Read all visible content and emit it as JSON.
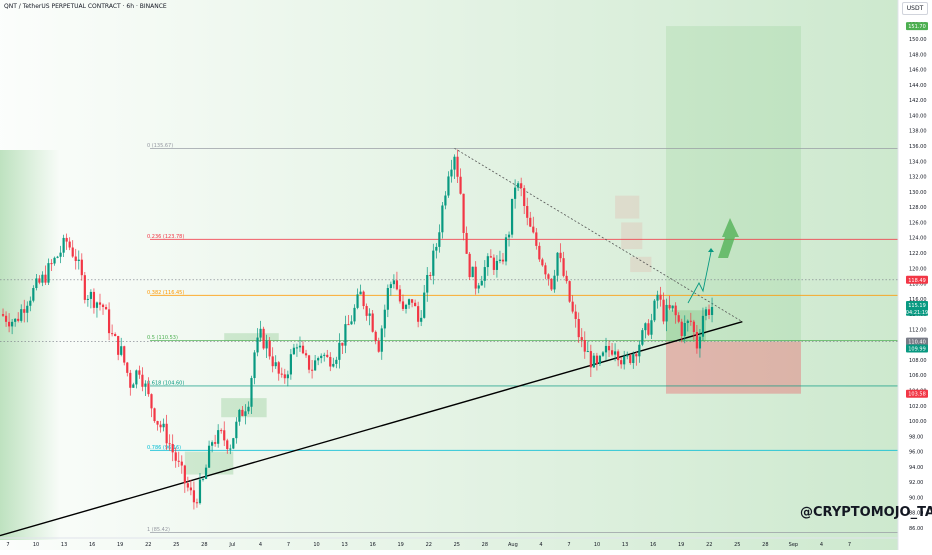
{
  "header": {
    "symbol_title": "QNT / TetherUS PERPETUAL CONTRACT · 6h · BINANCE",
    "currency_button": "USDT"
  },
  "watermark": "@CRYPTOMOJO_TA",
  "colors": {
    "up": "#089981",
    "down": "#f23645",
    "trendline": "#000000",
    "fib_0": "#9598a1",
    "fib_0236": "#f23645",
    "fib_0382": "#ff9800",
    "fib_05": "#4caf50",
    "fib_0618": "#089981",
    "fib_0786": "#00bcd4",
    "target_zone": "#4caf50",
    "stop_zone": "#f23645",
    "green_bg": "#4caf50"
  },
  "chart_data": {
    "type": "candlestick",
    "instrument": "QNT / TetherUS PERPETUAL CONTRACT",
    "timeframe": "6h",
    "exchange": "BINANCE",
    "ylim": [
      85,
      156
    ],
    "y_ticks": [
      86,
      88,
      90,
      92,
      94,
      96,
      98,
      100,
      102,
      104,
      106,
      108,
      110,
      112,
      114,
      116,
      118,
      120,
      122,
      124,
      126,
      128,
      130,
      132,
      134,
      136,
      138,
      140,
      142,
      144,
      146,
      148,
      150,
      152,
      154
    ],
    "x_ticks": [
      "7",
      "10",
      "13",
      "16",
      "19",
      "22",
      "25",
      "28",
      "Jul",
      "4",
      "7",
      "10",
      "13",
      "16",
      "19",
      "22",
      "25",
      "28",
      "Aug",
      "4",
      "7",
      "10",
      "13",
      "16",
      "19",
      "22",
      "25",
      "28",
      "Sep",
      "4",
      "7"
    ],
    "price_path": [
      [
        0,
        114
      ],
      [
        5,
        113
      ],
      [
        9,
        116
      ],
      [
        14,
        118.5
      ],
      [
        18,
        121
      ],
      [
        22,
        123.5
      ],
      [
        25,
        121.5
      ],
      [
        28,
        117
      ],
      [
        31,
        116
      ],
      [
        34,
        115
      ],
      [
        37,
        111
      ],
      [
        40,
        109
      ],
      [
        43,
        105
      ],
      [
        46,
        107
      ],
      [
        49,
        103
      ],
      [
        52,
        100
      ],
      [
        55,
        98
      ],
      [
        58,
        95
      ],
      [
        61,
        92
      ],
      [
        64,
        89.5
      ],
      [
        67,
        92
      ],
      [
        70,
        97.5
      ],
      [
        73,
        98
      ],
      [
        76,
        97
      ],
      [
        79,
        100.5
      ],
      [
        82,
        103
      ],
      [
        84,
        109
      ],
      [
        86,
        111
      ],
      [
        88,
        110
      ],
      [
        90,
        108
      ],
      [
        93,
        105
      ],
      [
        95,
        107
      ],
      [
        98,
        110.5
      ],
      [
        100,
        108
      ],
      [
        103,
        107
      ],
      [
        106,
        109
      ],
      [
        108,
        108
      ],
      [
        111,
        109
      ],
      [
        114,
        111.5
      ],
      [
        117,
        114.5
      ],
      [
        119,
        116.5
      ],
      [
        122,
        114
      ],
      [
        125,
        110
      ],
      [
        128,
        117
      ],
      [
        130,
        119
      ],
      [
        133,
        114
      ],
      [
        136,
        116
      ],
      [
        138,
        113
      ],
      [
        141,
        118
      ],
      [
        144,
        123
      ],
      [
        146,
        128
      ],
      [
        148,
        133
      ],
      [
        150,
        135.2
      ],
      [
        152,
        130
      ],
      [
        154,
        121
      ],
      [
        157,
        118
      ],
      [
        160,
        120
      ],
      [
        162,
        121
      ],
      [
        165,
        120
      ],
      [
        168,
        125
      ],
      [
        170,
        131
      ],
      [
        172,
        130
      ],
      [
        174,
        126
      ],
      [
        176,
        124
      ],
      [
        179,
        121
      ],
      [
        182,
        118
      ],
      [
        184,
        122
      ],
      [
        186,
        119
      ],
      [
        189,
        114
      ],
      [
        192,
        110
      ],
      [
        195,
        108
      ],
      [
        197,
        106.8
      ],
      [
        200,
        109
      ],
      [
        203,
        110
      ],
      [
        206,
        107.5
      ],
      [
        209,
        109
      ],
      [
        212,
        111
      ],
      [
        215,
        113
      ],
      [
        217,
        116.5
      ],
      [
        219,
        114
      ],
      [
        222,
        114.5
      ],
      [
        225,
        112
      ],
      [
        228,
        113
      ],
      [
        230,
        110
      ],
      [
        232,
        114
      ],
      [
        235,
        115
      ]
    ],
    "fibonacci": [
      {
        "level": "0",
        "price_label": "(135.67)",
        "value": 135.67
      },
      {
        "level": "0.236",
        "price_label": "(123.78)",
        "value": 123.78
      },
      {
        "level": "0.382",
        "price_label": "(116.45)",
        "value": 116.45
      },
      {
        "level": "0.5",
        "price_label": "(110.53)",
        "value": 110.53
      },
      {
        "level": "0.618",
        "price_label": "(104.60)",
        "value": 104.6
      },
      {
        "level": "0.786",
        "price_label": "(96.16)",
        "value": 96.16
      },
      {
        "level": "1",
        "price_label": "(85.42)",
        "value": 85.42
      }
    ],
    "price_badges": [
      {
        "label": "151.70",
        "value": 151.7,
        "kind": "target"
      },
      {
        "label": "118.49",
        "value": 118.49,
        "kind": "resistance"
      },
      {
        "label": "115.19",
        "value": 115.19,
        "kind": "last"
      },
      {
        "label": "04:21:19",
        "value": 114.3,
        "kind": "countdown"
      },
      {
        "label": "110.40",
        "value": 110.4,
        "kind": "entry"
      },
      {
        "label": "109.99",
        "value": 109.5,
        "kind": "entry2"
      },
      {
        "label": "103.58",
        "value": 103.58,
        "kind": "stop"
      }
    ],
    "trendline": {
      "from": [
        0,
        85
      ],
      "to": [
        245,
        113
      ]
    },
    "descending_line": {
      "from": [
        150,
        135.7
      ],
      "to": [
        245,
        113
      ]
    },
    "position": {
      "entry": 110.4,
      "target": 151.7,
      "stop": 103.58
    }
  }
}
